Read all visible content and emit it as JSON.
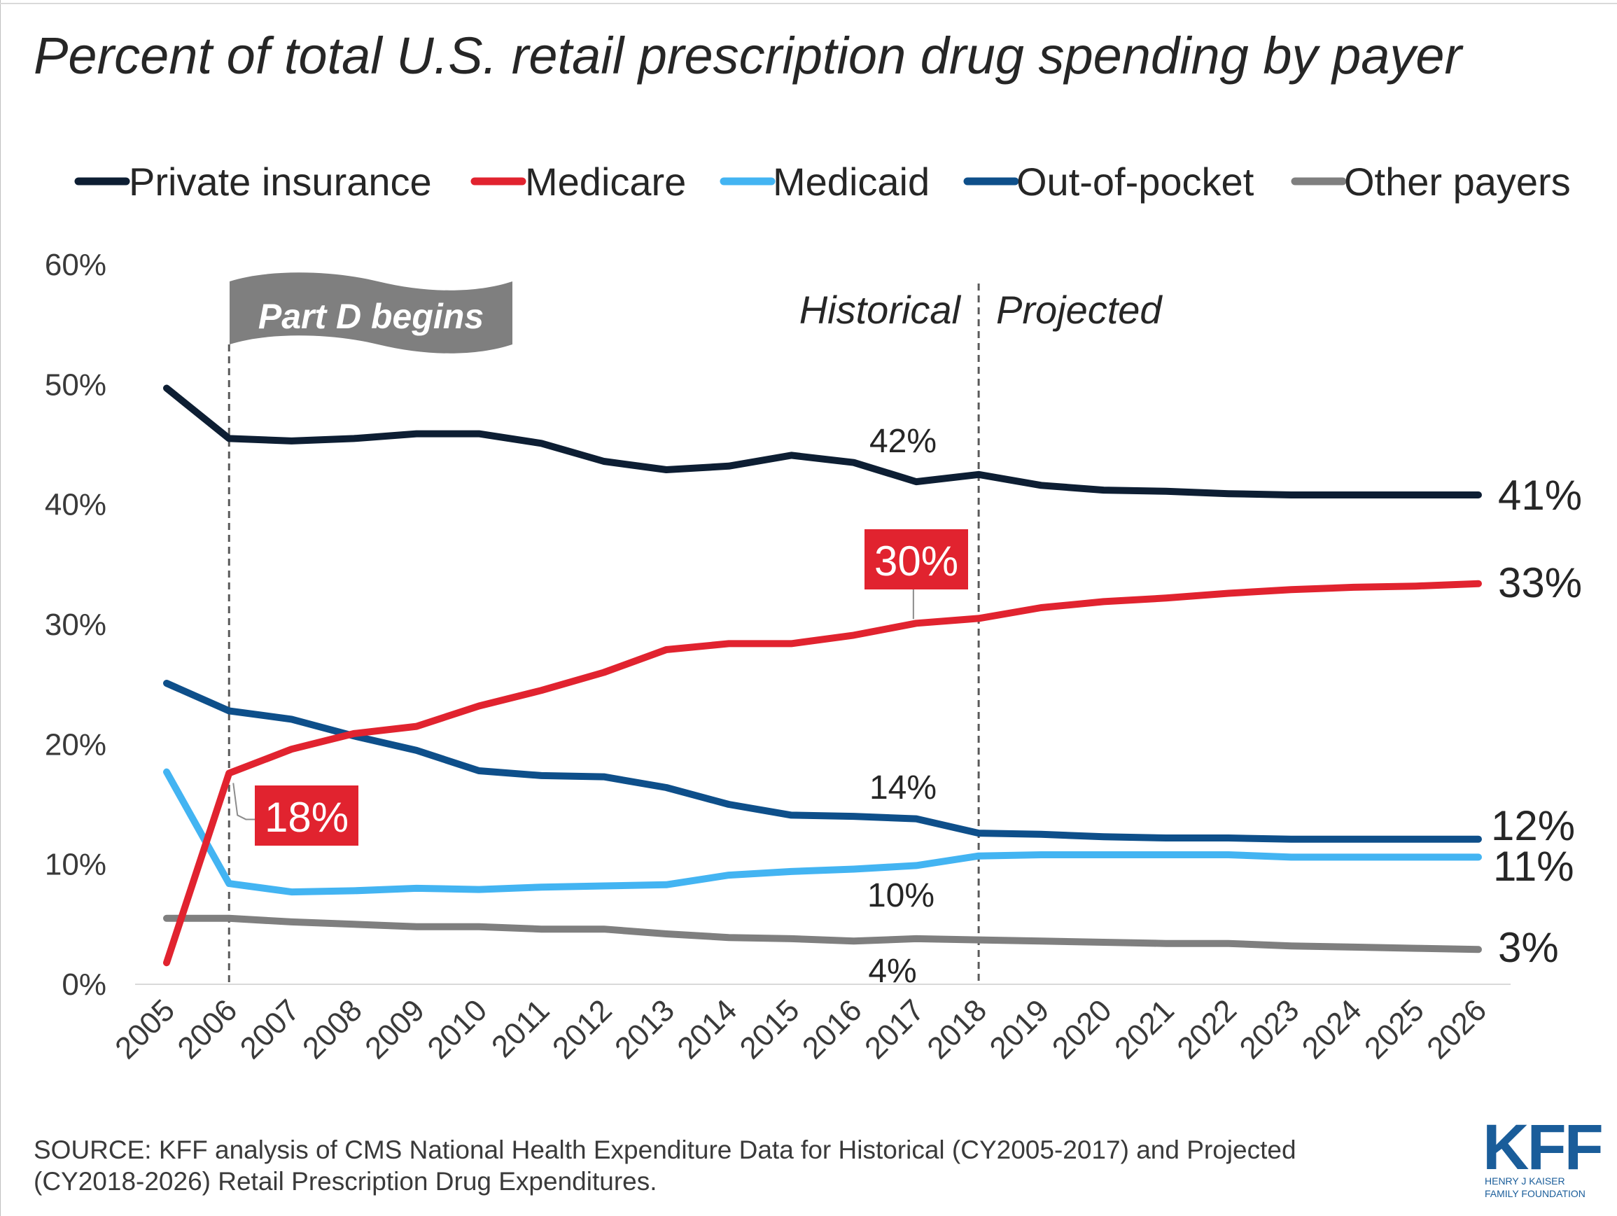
{
  "chart_data": {
    "type": "line",
    "title": "Percent of total U.S. retail prescription drug spending by payer",
    "categories": [
      "2005",
      "2006",
      "2007",
      "2008",
      "2009",
      "2010",
      "2011",
      "2012",
      "2013",
      "2014",
      "2015",
      "2016",
      "2017",
      "2018",
      "2019",
      "2020",
      "2021",
      "2022",
      "2023",
      "2024",
      "2025",
      "2026"
    ],
    "ylim": [
      0,
      60
    ],
    "yticks": [
      "0%",
      "10%",
      "20%",
      "30%",
      "40%",
      "50%",
      "60%"
    ],
    "legend_position": "top",
    "series": [
      {
        "name": "Private insurance",
        "color": "#0d1e33",
        "values": [
          49.7,
          45.5,
          45.3,
          45.5,
          45.9,
          45.9,
          45.1,
          43.6,
          42.9,
          43.2,
          44.1,
          43.5,
          41.9,
          42.5,
          41.6,
          41.2,
          41.1,
          40.9,
          40.8,
          40.8,
          40.8,
          40.8
        ]
      },
      {
        "name": "Medicare",
        "color": "#e1232f",
        "values": [
          1.8,
          17.6,
          19.6,
          20.9,
          21.5,
          23.2,
          24.5,
          26.0,
          27.9,
          28.4,
          28.4,
          29.1,
          30.1,
          30.5,
          31.4,
          31.9,
          32.2,
          32.6,
          32.9,
          33.1,
          33.2,
          33.4
        ]
      },
      {
        "name": "Medicaid",
        "color": "#43b4f2",
        "values": [
          17.7,
          8.4,
          7.7,
          7.8,
          8.0,
          7.9,
          8.1,
          8.2,
          8.3,
          9.1,
          9.4,
          9.6,
          9.9,
          10.7,
          10.8,
          10.8,
          10.8,
          10.8,
          10.6,
          10.6,
          10.6,
          10.6
        ]
      },
      {
        "name": "Out-of-pocket",
        "color": "#0e4f8a",
        "values": [
          25.1,
          22.8,
          22.1,
          20.7,
          19.5,
          17.8,
          17.4,
          17.3,
          16.4,
          15.0,
          14.1,
          14.0,
          13.8,
          12.6,
          12.5,
          12.3,
          12.2,
          12.2,
          12.1,
          12.1,
          12.1,
          12.1
        ]
      },
      {
        "name": "Other payers",
        "color": "#7f7f7f",
        "values": [
          5.5,
          5.5,
          5.2,
          5.0,
          4.8,
          4.8,
          4.6,
          4.6,
          4.2,
          3.9,
          3.8,
          3.6,
          3.8,
          3.7,
          3.6,
          3.5,
          3.4,
          3.4,
          3.2,
          3.1,
          3.0,
          2.9
        ]
      }
    ],
    "annotations": {
      "private_2017": "42%",
      "private_2026": "41%",
      "medicare_2006": "18%",
      "medicare_2017": "30%",
      "medicare_2026": "33%",
      "oop_2017": "14%",
      "oop_2026": "12%",
      "medicaid_2017": "10%",
      "medicaid_2026": "11%",
      "other_2017": "4%",
      "other_2026": "3%"
    },
    "part_d_label": "Part D begins",
    "historical_label": "Historical",
    "projected_label": "Projected",
    "divider_years": [
      "2006",
      "2018"
    ]
  },
  "source": {
    "line1": "SOURCE: KFF analysis of CMS National Health Expenditure Data for Historical (CY2005-2017) and Projected",
    "line2": "(CY2018-2026) Retail Prescription Drug Expenditures."
  },
  "logo": {
    "mark": "KFF",
    "line1": "HENRY J KAISER",
    "line2": "FAMILY FOUNDATION"
  }
}
